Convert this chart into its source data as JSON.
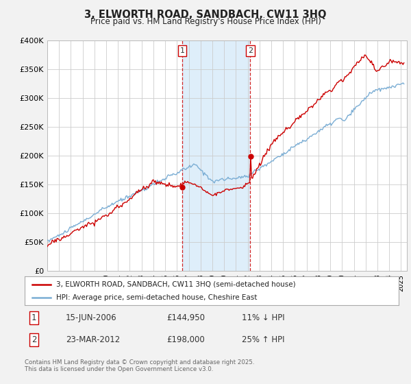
{
  "title": "3, ELWORTH ROAD, SANDBACH, CW11 3HQ",
  "subtitle": "Price paid vs. HM Land Registry's House Price Index (HPI)",
  "ylim": [
    0,
    400000
  ],
  "yticks": [
    0,
    50000,
    100000,
    150000,
    200000,
    250000,
    300000,
    350000,
    400000
  ],
  "ytick_labels": [
    "£0",
    "£50K",
    "£100K",
    "£150K",
    "£200K",
    "£250K",
    "£300K",
    "£350K",
    "£400K"
  ],
  "xlim_start": 1995.0,
  "xlim_end": 2025.5,
  "red_line_label": "3, ELWORTH ROAD, SANDBACH, CW11 3HQ (semi-detached house)",
  "blue_line_label": "HPI: Average price, semi-detached house, Cheshire East",
  "red_color": "#cc0000",
  "blue_color": "#7aadd4",
  "marker1_x": 2006.45,
  "marker1_label": "1",
  "marker1_price_val": 144950,
  "marker1_date": "15-JUN-2006",
  "marker1_price": "£144,950",
  "marker1_hpi": "11% ↓ HPI",
  "marker2_x": 2012.22,
  "marker2_label": "2",
  "marker2_price_val": 198000,
  "marker2_date": "23-MAR-2012",
  "marker2_price": "£198,000",
  "marker2_hpi": "25% ↑ HPI",
  "shaded_color": "#d0e8f8",
  "footer": "Contains HM Land Registry data © Crown copyright and database right 2025.\nThis data is licensed under the Open Government Licence v3.0.",
  "background_color": "#f2f2f2",
  "plot_bg_color": "#ffffff",
  "grid_color": "#cccccc",
  "title_fontsize": 10.5,
  "subtitle_fontsize": 8.5
}
